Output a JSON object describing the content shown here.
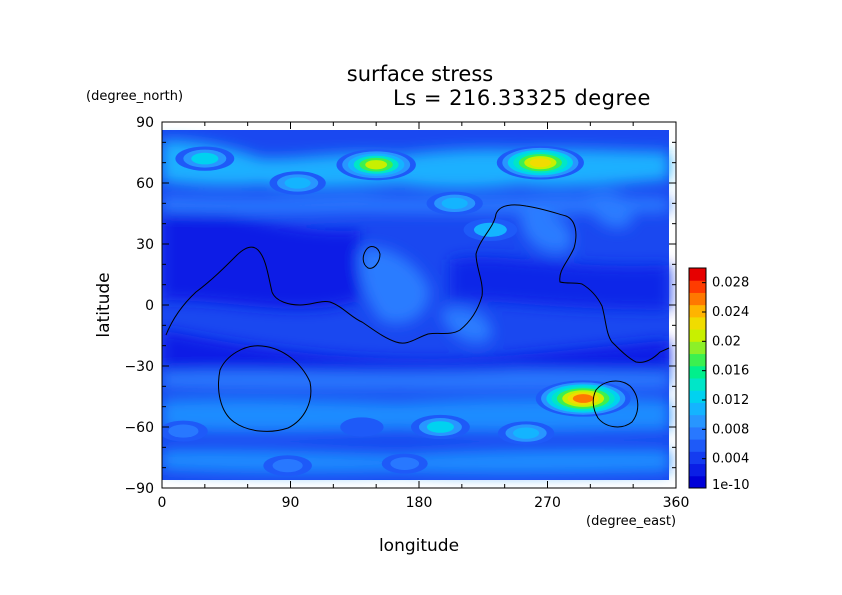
{
  "chart_data": {
    "type": "heatmap",
    "title": "surface stress",
    "subtitle": "Ls = 216.33325 degree",
    "xlabel": "longitude",
    "ylabel": "latitude",
    "x_unit": "(degree_east)",
    "y_unit": "(degree_north)",
    "xlim": [
      0,
      360
    ],
    "ylim": [
      -90,
      90
    ],
    "x_ticks": [
      "0",
      "90",
      "180",
      "270",
      "360"
    ],
    "y_ticks": [
      "90",
      "60",
      "30",
      "0",
      "−30",
      "−60",
      "−90"
    ],
    "colorbar": {
      "ticks": [
        "0.028",
        "0.024",
        "0.02",
        "0.016",
        "0.012",
        "0.008",
        "0.004",
        "1e-10"
      ],
      "min": 0,
      "max": 0.03,
      "colors": [
        "#0000d8",
        "#0a1ee6",
        "#143cf0",
        "#1e5af8",
        "#2878ff",
        "#2896ff",
        "#14b4ff",
        "#00d2f0",
        "#00e6c8",
        "#00f08c",
        "#3cf050",
        "#8cf028",
        "#c8f000",
        "#f0dc00",
        "#ffb400",
        "#ff7800",
        "#ff3c00",
        "#e60000"
      ]
    },
    "grid": false,
    "features": [
      {
        "lon": 30,
        "lat": 72,
        "value": 0.012
      },
      {
        "lon": 150,
        "lat": 69,
        "value": 0.02
      },
      {
        "lon": 265,
        "lat": 70,
        "value": 0.023
      },
      {
        "lon": 205,
        "lat": 50,
        "value": 0.011
      },
      {
        "lon": 230,
        "lat": 37,
        "value": 0.01
      },
      {
        "lon": 95,
        "lat": 60,
        "value": 0.011
      },
      {
        "lon": 295,
        "lat": -46,
        "value": 0.026
      },
      {
        "lon": 195,
        "lat": -60,
        "value": 0.012
      },
      {
        "lon": 255,
        "lat": -63,
        "value": 0.011
      },
      {
        "lon": 15,
        "lat": -62,
        "value": 0.008
      },
      {
        "lon": 88,
        "lat": -79,
        "value": 0.008
      },
      {
        "lon": 170,
        "lat": -78,
        "value": 0.007
      },
      {
        "lon": 140,
        "lat": -60,
        "value": 0.006
      }
    ]
  }
}
